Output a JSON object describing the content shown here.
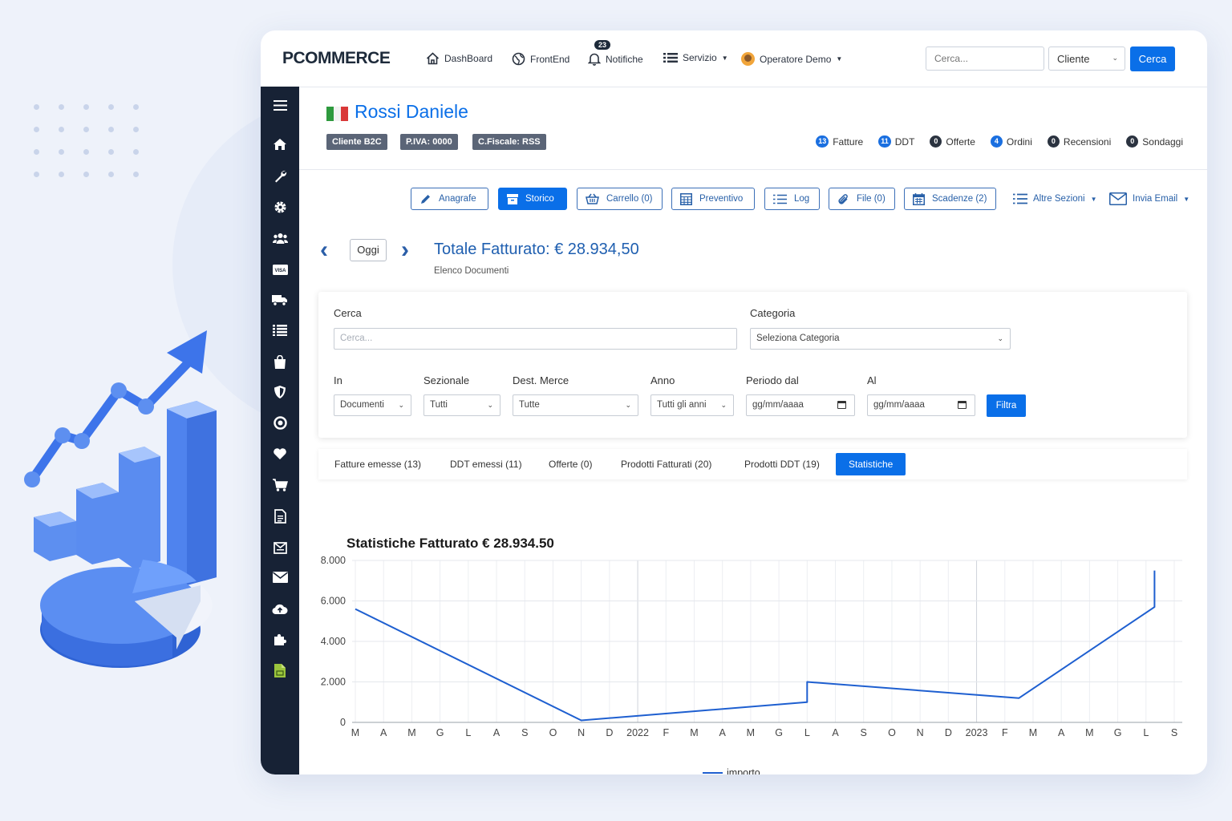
{
  "topbar": {
    "brand": "PCOMMERCE",
    "nav": {
      "dashboard": "DashBoard",
      "frontend": "FrontEnd",
      "notifiche": "Notifiche",
      "notifiche_badge": "23",
      "servizio": "Servizio",
      "operatore": "Operatore Demo"
    },
    "search_placeholder": "Cerca...",
    "search_type": "Cliente",
    "search_button": "Cerca"
  },
  "customer": {
    "name": "Rossi Daniele",
    "tags": [
      "Cliente B2C",
      "P.IVA: 0000",
      "C.Fiscale: RSS"
    ],
    "counters": [
      {
        "count": "13",
        "label": "Fatture",
        "color": "#1a6fe0"
      },
      {
        "count": "11",
        "label": "DDT",
        "color": "#1a6fe0"
      },
      {
        "count": "0",
        "label": "Offerte",
        "color": "#2b3340"
      },
      {
        "count": "4",
        "label": "Ordini",
        "color": "#1a6fe0"
      },
      {
        "count": "0",
        "label": "Recensioni",
        "color": "#2b3340"
      },
      {
        "count": "0",
        "label": "Sondaggi",
        "color": "#2b3340"
      }
    ]
  },
  "actions": {
    "anagrafe": "Anagrafe",
    "storico": "Storico",
    "carrello": "Carrello (0)",
    "preventivo": "Preventivo",
    "log": "Log",
    "file": "File (0)",
    "scadenze": "Scadenze (2)",
    "altre_sezioni": "Altre Sezioni",
    "invia_email": "Invia Email"
  },
  "header": {
    "oggi": "Oggi",
    "total": "Totale Fatturato: € 28.934,50",
    "subtitle": "Elenco Documenti"
  },
  "filters": {
    "cerca_label": "Cerca",
    "cerca_placeholder": "Cerca...",
    "categoria_label": "Categoria",
    "categoria_value": "Seleziona Categoria",
    "in_label": "In",
    "in_value": "Documenti",
    "sezionale_label": "Sezionale",
    "sezionale_value": "Tutti",
    "dest_label": "Dest. Merce",
    "dest_value": "Tutte",
    "anno_label": "Anno",
    "anno_value": "Tutti gli anni",
    "dal_label": "Periodo dal",
    "dal_placeholder": "gg/mm/aaaa",
    "al_label": "Al",
    "al_placeholder": "gg/mm/aaaa",
    "filtra": "Filtra"
  },
  "tabs": [
    "Fatture emesse (13)",
    "DDT emessi (11)",
    "Offerte (0)",
    "Prodotti Fatturati (20)",
    "Prodotti DDT (19)",
    "Statistiche"
  ],
  "chart_title": "Statistiche Fatturato € 28.934.50",
  "chart_data": {
    "type": "line",
    "title": "Statistiche Fatturato € 28.934.50",
    "x_ticks": [
      "M",
      "A",
      "M",
      "G",
      "L",
      "A",
      "S",
      "O",
      "N",
      "D",
      "2022",
      "F",
      "M",
      "A",
      "M",
      "G",
      "L",
      "A",
      "S",
      "O",
      "N",
      "D",
      "2023",
      "F",
      "M",
      "A",
      "M",
      "G",
      "L",
      "S"
    ],
    "y_ticks": [
      "0",
      "2.000",
      "4.000",
      "6.000",
      "8.000"
    ],
    "ylim": [
      0,
      8000
    ],
    "grid": true,
    "legend_position": "bottom",
    "series": [
      {
        "name": "importo",
        "color": "#1e5fd0",
        "points": [
          {
            "x": 0,
            "y": 5600
          },
          {
            "x": 8,
            "y": 100
          },
          {
            "x": 16,
            "y": 1000
          },
          {
            "x": 16,
            "y": 2000
          },
          {
            "x": 23.5,
            "y": 1200
          },
          {
            "x": 28.3,
            "y": 5700
          },
          {
            "x": 28.3,
            "y": 7500
          }
        ]
      }
    ]
  }
}
